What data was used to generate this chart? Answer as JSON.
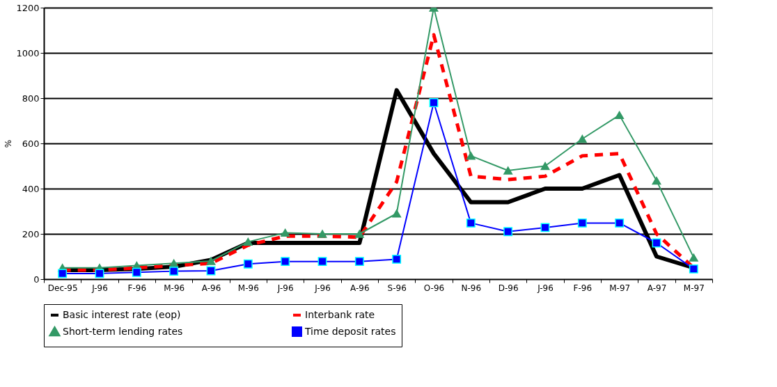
{
  "chart_data": {
    "type": "line",
    "ylabel": "%",
    "categories": [
      "Dec-95",
      "J-96",
      "F-96",
      "M-96",
      "A-96",
      "M-96",
      "J-96",
      "J-96",
      "A-96",
      "S-96",
      "O-96",
      "N-96",
      "D-96",
      "J-96",
      "F-96",
      "M-97",
      "A-97",
      "M-97"
    ],
    "series": [
      {
        "name": "Basic interest rate (eop)",
        "color": "#000000",
        "marker": "none",
        "line_style": "solid",
        "values": [
          40,
          40,
          45,
          55,
          85,
          160,
          160,
          160,
          160,
          835,
          555,
          340,
          340,
          400,
          400,
          460,
          100,
          50
        ]
      },
      {
        "name": "Interbank rate",
        "color": "#ff0000",
        "marker": "none",
        "line_style": "dashed",
        "values": [
          40,
          40,
          50,
          60,
          70,
          150,
          190,
          190,
          185,
          430,
          1080,
          455,
          440,
          455,
          545,
          555,
          200,
          50
        ]
      },
      {
        "name": "Short-term lending rates",
        "color": "#339966",
        "marker": "triangle",
        "line_style": "solid",
        "values": [
          50,
          50,
          60,
          70,
          80,
          165,
          205,
          200,
          200,
          290,
          1200,
          545,
          480,
          500,
          620,
          725,
          435,
          95
        ]
      },
      {
        "name": "Time deposit rates",
        "color": "#0000ff",
        "marker": "square",
        "line_style": "solid",
        "values": [
          25,
          25,
          30,
          35,
          37,
          67,
          78,
          78,
          78,
          88,
          780,
          248,
          210,
          228,
          248,
          248,
          160,
          45
        ]
      }
    ],
    "ylim": [
      0,
      1200
    ],
    "yticks": [
      0,
      200,
      400,
      600,
      800,
      1000,
      1200
    ],
    "grid": "y",
    "legend": "bottom"
  }
}
